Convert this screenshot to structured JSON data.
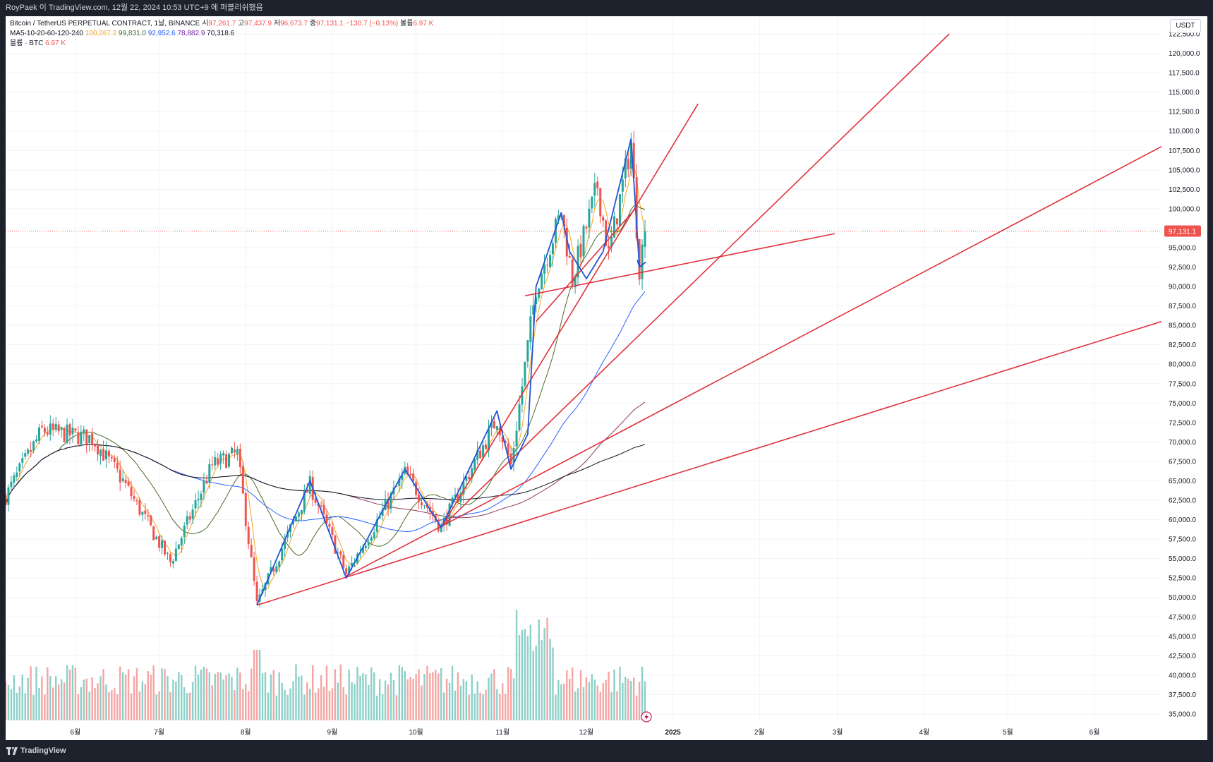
{
  "header": {
    "publish_note": "RoyPaek 이 TradingView.com, 12월 22, 2024 10:53 UTC+9 에 퍼블리쉬했음"
  },
  "legend": {
    "symbol": "Bitcoin / TetherUS PERPETUAL CONTRACT, 1날, BINANCE",
    "open_label": "시",
    "open": "97,261.7",
    "high_label": "고",
    "high": "97,437.9",
    "low_label": "저",
    "low": "96,673.7",
    "close_label": "종",
    "close": "97,131.1",
    "change": "−130.7 (−0.13%)",
    "volume_label": "볼륨",
    "volume": "6.97 K",
    "ma_label": "MA5-10-20-60-120-240",
    "ma_values": [
      "100,267.2",
      "99,831.0",
      "92,952.6",
      "78,882.9",
      "70,318.6"
    ],
    "volume_series_label": "볼륨 · BTC",
    "volume_series_value": "6.97 K"
  },
  "price_axis": {
    "currency": "USDT",
    "current_price_label": "97,131.1"
  },
  "footer": {
    "brand": "TradingView"
  },
  "colors": {
    "up": "#26a69a",
    "down": "#ef5350",
    "trendline": "#e0323c",
    "pattern": "#2454d6",
    "ma5": "#f5a623",
    "ma20": "#4a6b2a",
    "ma60": "#2962ff",
    "ma120": "#8e3b5a",
    "ma240": "#131722"
  },
  "chart_data": {
    "type": "candlestick",
    "interval": "1D",
    "y_axis": {
      "min": 35000,
      "max": 122500,
      "step": 2500,
      "tick_labels": [
        "35,000.0",
        "37,500.0",
        "40,000.0",
        "42,500.0",
        "45,000.0",
        "47,500.0",
        "50,000.0",
        "52,500.0",
        "55,000.0",
        "57,500.0",
        "60,000.0",
        "62,500.0",
        "65,000.0",
        "67,500.0",
        "70,000.0",
        "72,500.0",
        "75,000.0",
        "77,500.0",
        "80,000.0",
        "82,500.0",
        "85,000.0",
        "87,500.0",
        "90,000.0",
        "92,500.0",
        "95,000.0",
        "97,500.0",
        "100,000.0",
        "102,500.0",
        "105,000.0",
        "107,500.0",
        "110,000.0",
        "112,500.0",
        "115,000.0",
        "117,500.0",
        "120,000.0",
        "122,500.0"
      ]
    },
    "x_axis": {
      "tick_labels": [
        "6월",
        "7월",
        "8월",
        "9월",
        "10월",
        "11월",
        "12월",
        "2025",
        "2월",
        "3월",
        "4월",
        "5월",
        "6월"
      ],
      "tick_dates": [
        "2024-06-01",
        "2024-07-01",
        "2024-08-01",
        "2024-09-01",
        "2024-10-01",
        "2024-11-01",
        "2024-12-01",
        "2025-01-01",
        "2025-02-01",
        "2025-03-01",
        "2025-04-01",
        "2025-05-01",
        "2025-06-01"
      ],
      "range": [
        "2024-05-07",
        "2025-06-25"
      ]
    },
    "price_path": [
      {
        "date": "2024-05-07",
        "price": 63000
      },
      {
        "date": "2024-05-20",
        "price": 71500
      },
      {
        "date": "2024-06-07",
        "price": 70500
      },
      {
        "date": "2024-06-18",
        "price": 65000
      },
      {
        "date": "2024-07-05",
        "price": 54500
      },
      {
        "date": "2024-07-20",
        "price": 67000
      },
      {
        "date": "2024-07-29",
        "price": 68500
      },
      {
        "date": "2024-08-05",
        "price": 49000
      },
      {
        "date": "2024-08-24",
        "price": 64500
      },
      {
        "date": "2024-09-06",
        "price": 53000
      },
      {
        "date": "2024-09-27",
        "price": 66000
      },
      {
        "date": "2024-10-10",
        "price": 59000
      },
      {
        "date": "2024-10-30",
        "price": 73000
      },
      {
        "date": "2024-11-04",
        "price": 67000
      },
      {
        "date": "2024-11-13",
        "price": 90000
      },
      {
        "date": "2024-11-22",
        "price": 99500
      },
      {
        "date": "2024-11-26",
        "price": 91000
      },
      {
        "date": "2024-12-05",
        "price": 103000
      },
      {
        "date": "2024-12-09",
        "price": 94000
      },
      {
        "date": "2024-12-17",
        "price": 108500
      },
      {
        "date": "2024-12-20",
        "price": 92500
      },
      {
        "date": "2024-12-22",
        "price": 97131
      }
    ],
    "moving_averages": [
      {
        "name": "MA5",
        "last": 100267.2
      },
      {
        "name": "MA20",
        "last": 99831.0
      },
      {
        "name": "MA60",
        "last": 92952.6
      },
      {
        "name": "MA120",
        "last": 78882.9
      },
      {
        "name": "MA240",
        "last": 70318.6
      }
    ],
    "last_close": 97131.1,
    "volume_last": "6.97 K",
    "drawings": {
      "trendlines": [
        {
          "from": {
            "date": "2024-08-05",
            "price": 49000
          },
          "to": {
            "date": "2025-06-25",
            "price": 85500
          }
        },
        {
          "from": {
            "date": "2024-09-06",
            "price": 52700
          },
          "to": {
            "date": "2025-06-25",
            "price": 108000
          }
        },
        {
          "from": {
            "date": "2024-10-10",
            "price": 59000
          },
          "to": {
            "date": "2025-04-10",
            "price": 122500
          }
        },
        {
          "from": {
            "date": "2024-10-10",
            "price": 59000
          },
          "to": {
            "date": "2025-01-10",
            "price": 113500
          }
        },
        {
          "from": {
            "date": "2024-11-09",
            "price": 88800
          },
          "to": {
            "date": "2025-02-28",
            "price": 96800
          }
        },
        {
          "from": {
            "date": "2024-11-13",
            "price": 85500
          },
          "to": {
            "date": "2024-12-19",
            "price": 100200
          }
        }
      ],
      "pattern_path": [
        {
          "date": "2024-08-05",
          "price": 49000
        },
        {
          "date": "2024-08-24",
          "price": 65000
        },
        {
          "date": "2024-09-06",
          "price": 52500
        },
        {
          "date": "2024-09-27",
          "price": 66500
        },
        {
          "date": "2024-10-10",
          "price": 59000
        },
        {
          "date": "2024-10-30",
          "price": 74000
        },
        {
          "date": "2024-11-04",
          "price": 66500
        },
        {
          "date": "2024-11-10",
          "price": 71000
        },
        {
          "date": "2024-11-13",
          "price": 90000
        },
        {
          "date": "2024-11-22",
          "price": 99500
        },
        {
          "date": "2024-11-25",
          "price": 94500
        },
        {
          "date": "2024-12-01",
          "price": 91000
        },
        {
          "date": "2024-12-07",
          "price": 94500
        },
        {
          "date": "2024-12-17",
          "price": 109000
        },
        {
          "date": "2024-12-20",
          "price": 92500
        }
      ]
    }
  }
}
